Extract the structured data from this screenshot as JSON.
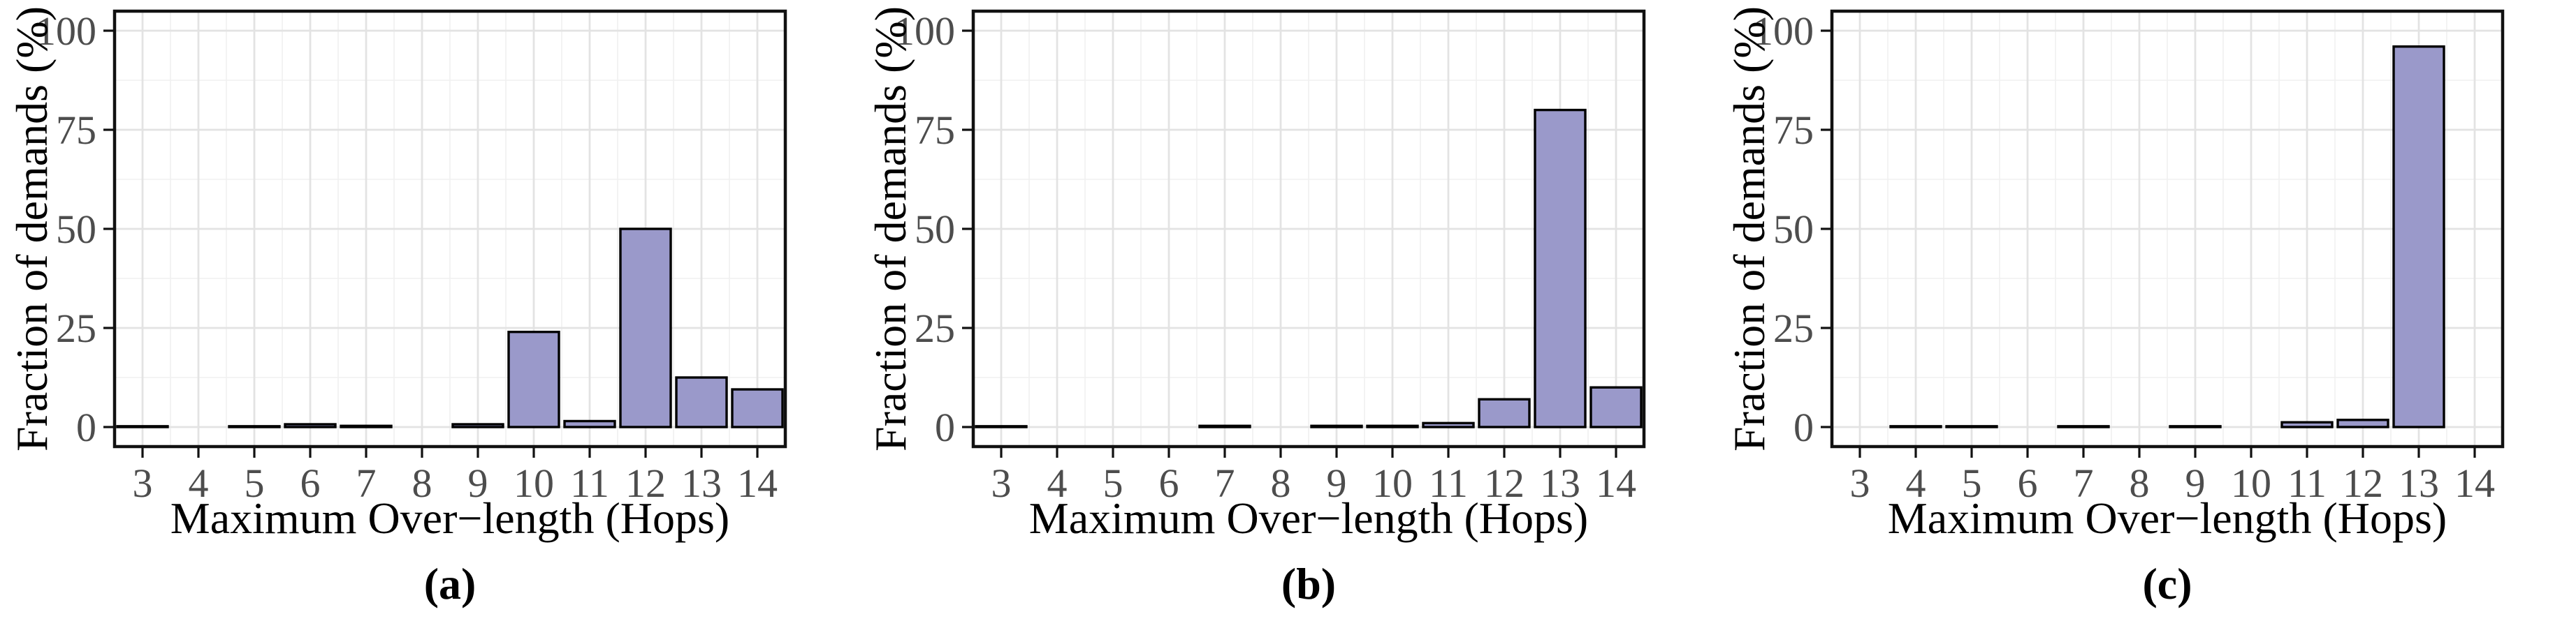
{
  "figure": {
    "ylabel": "Fraction of demands (%)",
    "xlabel": "Maximum Over−length (Hops)"
  },
  "style": {
    "bar_fill": "#9a99ca",
    "bar_stroke": "#000000",
    "grid_major": "#e3e3e3",
    "grid_minor": "#f0f0f0",
    "panel_border": "#111111",
    "tick_mark": "#111111",
    "tick_label_color": "#4d4d4d",
    "panel_background": "#ffffff"
  },
  "chart_data": [
    {
      "type": "bar",
      "caption": "(a)",
      "xlabel": "Maximum Over−length (Hops)",
      "ylabel": "Fraction of demands (%)",
      "categories": [
        "3",
        "4",
        "5",
        "6",
        "7",
        "8",
        "9",
        "10",
        "11",
        "12",
        "13",
        "14"
      ],
      "values": [
        0.2,
        null,
        0.2,
        0.7,
        0.3,
        null,
        0.7,
        24,
        1.5,
        50,
        12.5,
        9.5
      ],
      "ylim": [
        0,
        100
      ],
      "yticks": [
        0,
        25,
        50,
        75,
        100
      ],
      "grid": "major-and-minor",
      "legend": "none"
    },
    {
      "type": "bar",
      "caption": "(b)",
      "xlabel": "Maximum Over−length (Hops)",
      "ylabel": "Fraction of demands (%)",
      "categories": [
        "3",
        "4",
        "5",
        "6",
        "7",
        "8",
        "9",
        "10",
        "11",
        "12",
        "13",
        "14"
      ],
      "values": [
        0.2,
        null,
        null,
        null,
        0.3,
        null,
        0.3,
        0.3,
        1,
        7,
        80,
        10
      ],
      "ylim": [
        0,
        100
      ],
      "yticks": [
        0,
        25,
        50,
        75,
        100
      ],
      "grid": "major-and-minor",
      "legend": "none"
    },
    {
      "type": "bar",
      "caption": "(c)",
      "xlabel": "Maximum Over−length (Hops)",
      "ylabel": "Fraction of demands (%)",
      "categories": [
        "3",
        "4",
        "5",
        "6",
        "7",
        "8",
        "9",
        "10",
        "11",
        "12",
        "13",
        "14"
      ],
      "values": [
        null,
        0.2,
        0.2,
        null,
        0.2,
        null,
        0.2,
        null,
        1.2,
        1.8,
        96,
        null
      ],
      "ylim": [
        0,
        100
      ],
      "yticks": [
        0,
        25,
        50,
        75,
        100
      ],
      "grid": "major-and-minor",
      "legend": "none"
    }
  ]
}
